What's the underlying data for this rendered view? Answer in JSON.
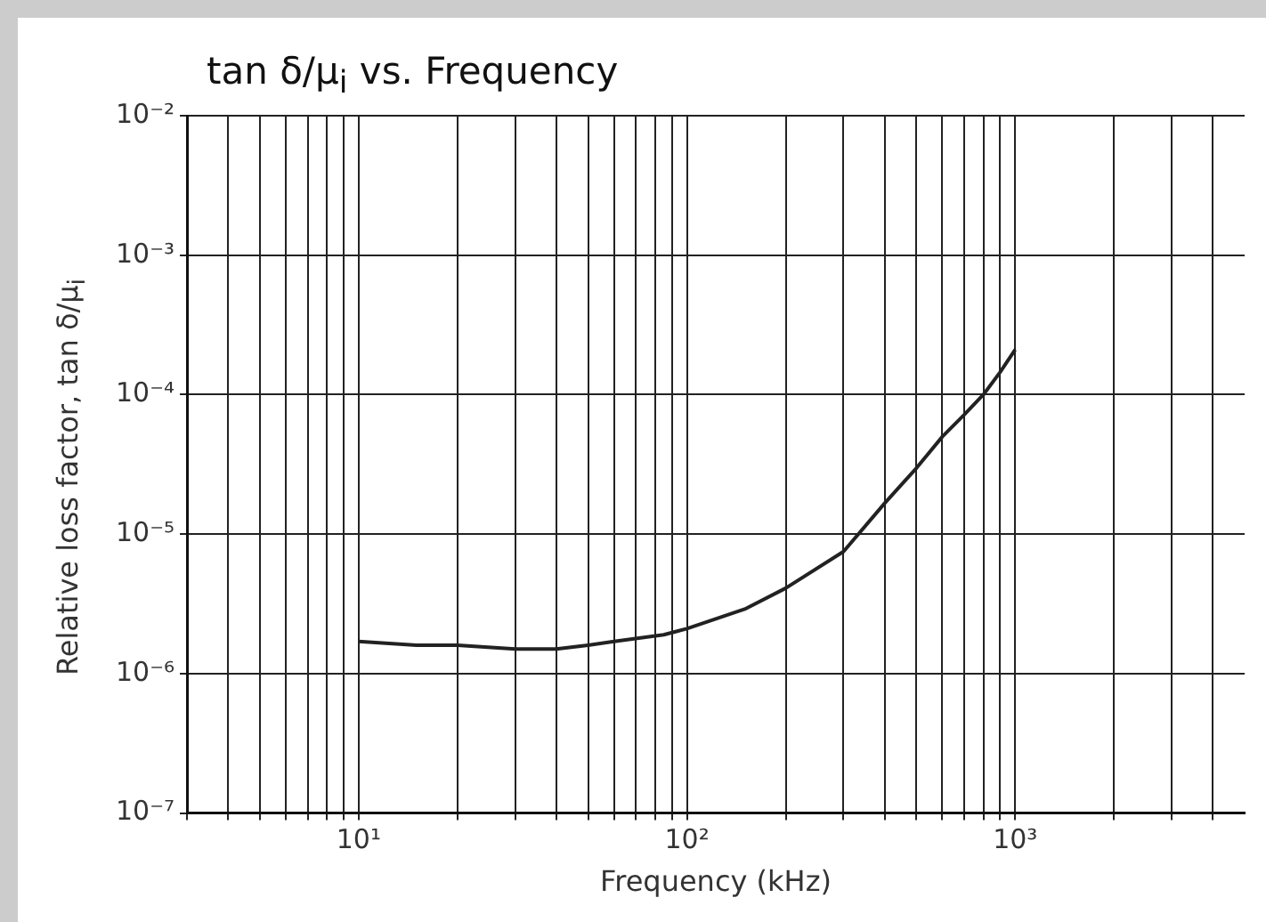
{
  "chart_data": {
    "type": "line",
    "title": "tan δ/μ$_{i}$ vs. Frequency",
    "xlabel": "Frequency (kHz)",
    "ylabel": "Relative loss factor, tan δ/μ$_{i}$",
    "log": "xy",
    "grid": true,
    "legend": false,
    "marker": "none",
    "line_style": "solid",
    "xlim": [
      3,
      5000
    ],
    "ylim": [
      1e-07,
      0.01
    ],
    "xticks": [
      {
        "value": 3,
        "label": null
      },
      {
        "value": 4,
        "label": null
      },
      {
        "value": 5,
        "label": null
      },
      {
        "value": 6,
        "label": null
      },
      {
        "value": 7,
        "label": null
      },
      {
        "value": 8,
        "label": null
      },
      {
        "value": 9,
        "label": null
      },
      {
        "value": 10,
        "label": "10¹"
      },
      {
        "value": 20,
        "label": null
      },
      {
        "value": 30,
        "label": null
      },
      {
        "value": 40,
        "label": null
      },
      {
        "value": 50,
        "label": null
      },
      {
        "value": 60,
        "label": null
      },
      {
        "value": 70,
        "label": null
      },
      {
        "value": 80,
        "label": null
      },
      {
        "value": 90,
        "label": null
      },
      {
        "value": 100,
        "label": "10²"
      },
      {
        "value": 200,
        "label": null
      },
      {
        "value": 300,
        "label": null
      },
      {
        "value": 400,
        "label": null
      },
      {
        "value": 500,
        "label": null
      },
      {
        "value": 600,
        "label": null
      },
      {
        "value": 700,
        "label": null
      },
      {
        "value": 800,
        "label": null
      },
      {
        "value": 900,
        "label": null
      },
      {
        "value": 1000,
        "label": "10³"
      },
      {
        "value": 2000,
        "label": null
      },
      {
        "value": 3000,
        "label": null
      },
      {
        "value": 4000,
        "label": null
      }
    ],
    "yticks": [
      {
        "value": 1e-07,
        "label": "10⁻⁷"
      },
      {
        "value": 1e-06,
        "label": "10⁻⁶"
      },
      {
        "value": 1e-05,
        "label": "10⁻⁵"
      },
      {
        "value": 0.0001,
        "label": "10⁻⁴"
      },
      {
        "value": 0.001,
        "label": "10⁻³"
      },
      {
        "value": 0.01,
        "label": "10⁻²"
      }
    ],
    "x": [
      10,
      15,
      20,
      30,
      40,
      50,
      60,
      85,
      100,
      150,
      200,
      300,
      400,
      500,
      600,
      700,
      800,
      900,
      1000
    ],
    "series": [
      {
        "color": "#222222",
        "values": [
          1.7e-06,
          1.6e-06,
          1.6e-06,
          1.5e-06,
          1.5e-06,
          1.6e-06,
          1.7e-06,
          1.9e-06,
          2.1e-06,
          2.9e-06,
          4.1e-06,
          7.5e-06,
          1.66e-05,
          2.97e-05,
          5e-05,
          7.2e-05,
          0.0001,
          0.000145,
          0.00021
        ]
      }
    ]
  }
}
